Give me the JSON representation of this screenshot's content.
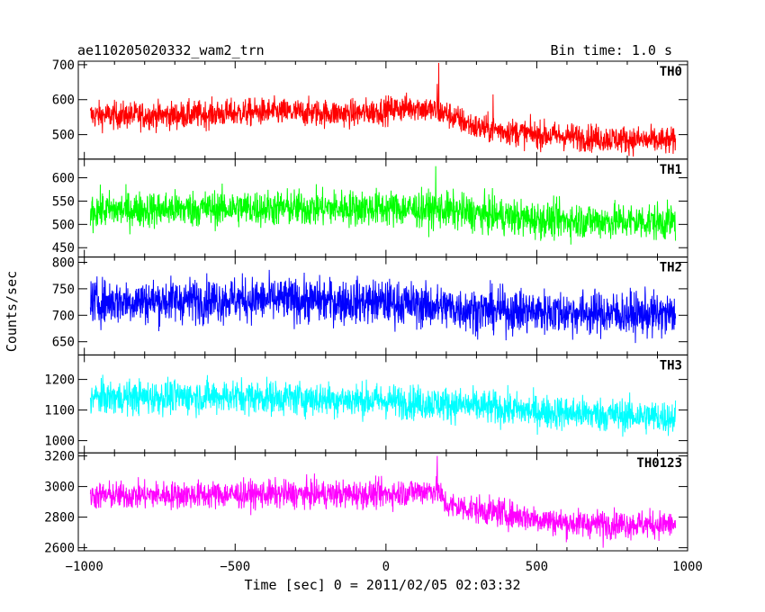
{
  "header": {
    "left": "ae110205020332_wam2_trn",
    "right": "Bin time: 1.0 s"
  },
  "chart_data": {
    "type": "line",
    "title": "ae110205020332_wam2_trn",
    "subtitle": "Bin time: 1.0 s",
    "xlabel": "Time [sec] 0 = 2011/02/05 02:03:32",
    "ylabel": "Counts/sec",
    "xlim": [
      -1020,
      1000
    ],
    "xticks": [
      -1000,
      -500,
      0,
      500,
      1000
    ],
    "xtick_labels": [
      "−1000",
      "−500",
      "0",
      "500",
      "1000"
    ],
    "data_x_range": [
      -980,
      960
    ],
    "grid": false,
    "panels": [
      {
        "name": "TH0",
        "color": "#ff0000",
        "ylim": [
          430,
          710
        ],
        "yticks": [
          500,
          600,
          700
        ],
        "trend": {
          "x": [
            -980,
            -700,
            -400,
            -100,
            100,
            200,
            300,
            500,
            700,
            960
          ],
          "y": [
            555,
            555,
            565,
            560,
            580,
            560,
            520,
            500,
            490,
            480
          ]
        },
        "noise": 28,
        "spikes": [
          [
            175,
            705
          ],
          [
            170,
            645
          ],
          [
            355,
            615
          ]
        ]
      },
      {
        "name": "TH1",
        "color": "#00ff00",
        "ylim": [
          430,
          640
        ],
        "yticks": [
          450,
          500,
          550,
          600
        ],
        "trend": {
          "x": [
            -980,
            -500,
            0,
            200,
            500,
            960
          ],
          "y": [
            530,
            535,
            535,
            530,
            510,
            505
          ]
        },
        "noise": 28,
        "spikes": [
          [
            165,
            625
          ]
        ]
      },
      {
        "name": "TH2",
        "color": "#0000ff",
        "ylim": [
          625,
          810
        ],
        "yticks": [
          650,
          700,
          750,
          800
        ],
        "trend": {
          "x": [
            -980,
            -500,
            0,
            300,
            960
          ],
          "y": [
            725,
            730,
            725,
            710,
            700
          ]
        },
        "noise": 30,
        "spikes": []
      },
      {
        "name": "TH3",
        "color": "#00ffff",
        "ylim": [
          960,
          1280
        ],
        "yticks": [
          1000,
          1100,
          1200
        ],
        "trend": {
          "x": [
            -980,
            -500,
            0,
            200,
            500,
            960
          ],
          "y": [
            1140,
            1145,
            1130,
            1120,
            1095,
            1075
          ]
        },
        "noise": 40,
        "spikes": []
      },
      {
        "name": "TH0123",
        "color": "#ff00ff",
        "ylim": [
          2580,
          3220
        ],
        "yticks": [
          2600,
          2800,
          3000,
          3200
        ],
        "trend": {
          "x": [
            -980,
            -400,
            0,
            170,
            200,
            400,
            600,
            960
          ],
          "y": [
            2940,
            2950,
            2950,
            2980,
            2880,
            2820,
            2760,
            2750
          ]
        },
        "noise": 65,
        "spikes": [
          [
            170,
            3200
          ],
          [
            375,
            2930
          ],
          [
            720,
            2600
          ]
        ]
      }
    ]
  }
}
